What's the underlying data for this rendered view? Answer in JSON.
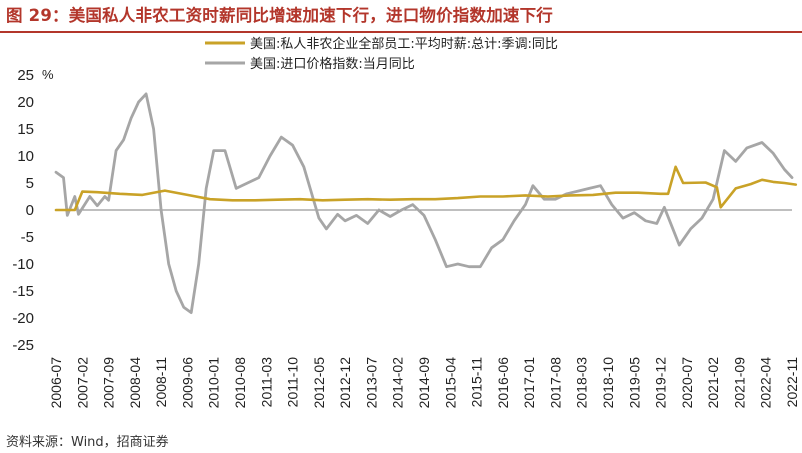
{
  "header": {
    "title": "图 29：美国私人非农工资时薪同比增速加速下行，进口物价指数加速下行"
  },
  "footer": {
    "source": "资料来源：Wind，招商证券"
  },
  "colors": {
    "title": "#b3362b",
    "series_wage": "#c9a227",
    "series_import": "#a6a6a6",
    "zero_line": "#555555"
  },
  "chart_data": {
    "type": "line",
    "title": "美国私人非农工资时薪同比增速加速下行，进口物价指数加速下行",
    "ylabel": "%",
    "xlabel": "",
    "ylim": [
      -25,
      25
    ],
    "yticks": [
      25,
      20,
      15,
      10,
      5,
      0,
      -5,
      -10,
      -15,
      -20,
      -25
    ],
    "xticks": [
      "2006-07",
      "2007-02",
      "2007-09",
      "2008-04",
      "2008-11",
      "2009-06",
      "2010-01",
      "2010-08",
      "2011-03",
      "2011-10",
      "2012-05",
      "2012-12",
      "2013-07",
      "2014-02",
      "2014-09",
      "2015-04",
      "2015-11",
      "2016-06",
      "2017-01",
      "2017-08",
      "2018-03",
      "2018-10",
      "2019-05",
      "2019-12",
      "2020-07",
      "2021-02",
      "2021-09",
      "2022-04",
      "2022-11"
    ],
    "grid": false,
    "legend_position": "top",
    "series": [
      {
        "name": "美国:私人非农企业全部员工:平均时薪:总计:季调:同比",
        "color": "#c9a227",
        "points": [
          [
            "2006-07",
            0.0
          ],
          [
            "2006-12",
            0.0
          ],
          [
            "2007-02",
            3.4
          ],
          [
            "2007-06",
            3.3
          ],
          [
            "2007-12",
            3.0
          ],
          [
            "2008-06",
            2.8
          ],
          [
            "2008-12",
            3.6
          ],
          [
            "2009-06",
            2.8
          ],
          [
            "2009-12",
            2.0
          ],
          [
            "2010-06",
            1.8
          ],
          [
            "2010-12",
            1.8
          ],
          [
            "2011-06",
            1.9
          ],
          [
            "2011-12",
            2.0
          ],
          [
            "2012-06",
            1.8
          ],
          [
            "2012-12",
            1.9
          ],
          [
            "2013-06",
            2.0
          ],
          [
            "2013-12",
            1.9
          ],
          [
            "2014-06",
            2.0
          ],
          [
            "2014-12",
            2.0
          ],
          [
            "2015-06",
            2.2
          ],
          [
            "2015-12",
            2.5
          ],
          [
            "2016-06",
            2.5
          ],
          [
            "2016-12",
            2.7
          ],
          [
            "2017-06",
            2.5
          ],
          [
            "2017-12",
            2.7
          ],
          [
            "2018-06",
            2.8
          ],
          [
            "2018-12",
            3.2
          ],
          [
            "2019-06",
            3.2
          ],
          [
            "2019-12",
            3.0
          ],
          [
            "2020-02",
            3.0
          ],
          [
            "2020-04",
            8.0
          ],
          [
            "2020-06",
            5.0
          ],
          [
            "2020-12",
            5.1
          ],
          [
            "2021-03",
            4.2
          ],
          [
            "2021-04",
            0.5
          ],
          [
            "2021-08",
            4.0
          ],
          [
            "2021-12",
            4.8
          ],
          [
            "2022-03",
            5.6
          ],
          [
            "2022-06",
            5.2
          ],
          [
            "2022-09",
            5.0
          ],
          [
            "2022-12",
            4.7
          ]
        ]
      },
      {
        "name": "美国:进口价格指数:当月同比",
        "color": "#a6a6a6",
        "points": [
          [
            "2006-07",
            7.0
          ],
          [
            "2006-09",
            6.0
          ],
          [
            "2006-10",
            -1.0
          ],
          [
            "2006-12",
            2.5
          ],
          [
            "2007-01",
            -0.8
          ],
          [
            "2007-04",
            2.5
          ],
          [
            "2007-06",
            0.8
          ],
          [
            "2007-08",
            2.5
          ],
          [
            "2007-09",
            1.8
          ],
          [
            "2007-11",
            11.0
          ],
          [
            "2008-01",
            13.0
          ],
          [
            "2008-03",
            17.0
          ],
          [
            "2008-05",
            20.0
          ],
          [
            "2008-07",
            21.5
          ],
          [
            "2008-09",
            15.0
          ],
          [
            "2008-11",
            0.0
          ],
          [
            "2009-01",
            -10.0
          ],
          [
            "2009-03",
            -15.0
          ],
          [
            "2009-05",
            -18.0
          ],
          [
            "2009-07",
            -19.0
          ],
          [
            "2009-09",
            -10.0
          ],
          [
            "2009-11",
            4.0
          ],
          [
            "2010-01",
            11.0
          ],
          [
            "2010-04",
            11.0
          ],
          [
            "2010-07",
            4.0
          ],
          [
            "2010-10",
            5.0
          ],
          [
            "2011-01",
            6.0
          ],
          [
            "2011-04",
            10.0
          ],
          [
            "2011-07",
            13.5
          ],
          [
            "2011-10",
            12.0
          ],
          [
            "2012-01",
            8.0
          ],
          [
            "2012-05",
            -1.5
          ],
          [
            "2012-07",
            -3.5
          ],
          [
            "2012-10",
            -0.8
          ],
          [
            "2012-12",
            -2.0
          ],
          [
            "2013-03",
            -1.0
          ],
          [
            "2013-06",
            -2.5
          ],
          [
            "2013-09",
            0.0
          ],
          [
            "2013-12",
            -1.2
          ],
          [
            "2014-03",
            0.0
          ],
          [
            "2014-06",
            1.0
          ],
          [
            "2014-09",
            -1.0
          ],
          [
            "2014-12",
            -5.5
          ],
          [
            "2015-03",
            -10.5
          ],
          [
            "2015-06",
            -10.0
          ],
          [
            "2015-09",
            -10.5
          ],
          [
            "2015-12",
            -10.5
          ],
          [
            "2016-03",
            -7.0
          ],
          [
            "2016-06",
            -5.5
          ],
          [
            "2016-09",
            -2.0
          ],
          [
            "2016-12",
            1.0
          ],
          [
            "2017-02",
            4.5
          ],
          [
            "2017-05",
            2.0
          ],
          [
            "2017-08",
            2.0
          ],
          [
            "2017-11",
            3.0
          ],
          [
            "2018-02",
            3.5
          ],
          [
            "2018-05",
            4.0
          ],
          [
            "2018-08",
            4.5
          ],
          [
            "2018-11",
            1.0
          ],
          [
            "2019-02",
            -1.5
          ],
          [
            "2019-05",
            -0.5
          ],
          [
            "2019-08",
            -2.0
          ],
          [
            "2019-11",
            -2.5
          ],
          [
            "2020-01",
            0.5
          ],
          [
            "2020-03",
            -3.0
          ],
          [
            "2020-05",
            -6.5
          ],
          [
            "2020-08",
            -3.5
          ],
          [
            "2020-11",
            -1.5
          ],
          [
            "2021-02",
            2.0
          ],
          [
            "2021-05",
            11.0
          ],
          [
            "2021-08",
            9.0
          ],
          [
            "2021-11",
            11.5
          ],
          [
            "2022-03",
            12.5
          ],
          [
            "2022-06",
            10.5
          ],
          [
            "2022-09",
            7.5
          ],
          [
            "2022-11",
            6.0
          ]
        ]
      }
    ]
  }
}
